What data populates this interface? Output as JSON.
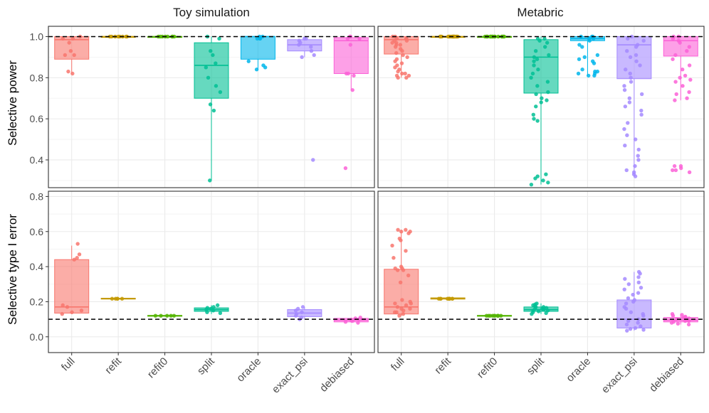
{
  "chart_data": {
    "type": "boxplot",
    "facet_columns": [
      "Toy simulation",
      "Metabric"
    ],
    "facet_rows": [
      "Selective power",
      "Selective type I error"
    ],
    "categories": [
      "full",
      "refit",
      "refit0",
      "split",
      "oracle",
      "exact_psi",
      "debiased"
    ],
    "colors": {
      "full": "#F8766D",
      "refit": "#C49A00",
      "refit0": "#53B400",
      "split": "#00C094",
      "oracle": "#00B6EB",
      "exact_psi": "#A58AFF",
      "debiased": "#FB61D7"
    },
    "panels": [
      {
        "row": "Selective power",
        "column": "Toy simulation",
        "ylim": [
          0.265,
          1.05
        ],
        "yticks": [
          0.4,
          0.6,
          0.8,
          1.0
        ],
        "ytick_labels": [
          "0.4",
          "0.6",
          "0.8",
          "1.0"
        ],
        "reference_line": 1.0,
        "boxes": [
          {
            "category": "full",
            "q1": 0.89,
            "median": 0.985,
            "q3": 1.0,
            "whisker_low": 0.82,
            "whisker_high": 1.0,
            "points": [
              1.0,
              0.99,
              0.99,
              0.97,
              0.93,
              0.91,
              0.91,
              0.83,
              0.82
            ]
          },
          {
            "category": "refit",
            "q1": 1.0,
            "median": 1.0,
            "q3": 1.0,
            "whisker_low": 1.0,
            "whisker_high": 1.0,
            "points": [
              1.0,
              1.0,
              1.0,
              1.0,
              1.0,
              1.0,
              1.0,
              1.0
            ]
          },
          {
            "category": "refit0",
            "q1": 1.0,
            "median": 1.0,
            "q3": 1.0,
            "whisker_low": 1.0,
            "whisker_high": 1.0,
            "points": [
              1.0,
              1.0,
              1.0,
              1.0,
              1.0,
              1.0,
              1.0,
              1.0
            ]
          },
          {
            "category": "split",
            "q1": 0.7,
            "median": 0.86,
            "q3": 0.97,
            "whisker_low": 0.3,
            "whisker_high": 1.0,
            "points": [
              1.0,
              0.99,
              0.93,
              0.91,
              0.87,
              0.85,
              0.8,
              0.76,
              0.73,
              0.67,
              0.64,
              0.3
            ]
          },
          {
            "category": "oracle",
            "q1": 0.89,
            "median": 1.0,
            "q3": 1.0,
            "whisker_low": 0.84,
            "whisker_high": 1.0,
            "points": [
              1.0,
              1.0,
              0.99,
              0.99,
              0.99,
              0.88,
              0.86,
              0.85,
              0.84
            ]
          },
          {
            "category": "exact_psi",
            "q1": 0.93,
            "median": 0.96,
            "q3": 0.985,
            "whisker_low": 0.9,
            "whisker_high": 1.0,
            "points": [
              0.99,
              0.99,
              0.98,
              0.97,
              0.96,
              0.95,
              0.93,
              0.91,
              0.9,
              0.4
            ]
          },
          {
            "category": "debiased",
            "q1": 0.82,
            "median": 0.98,
            "q3": 0.995,
            "whisker_low": 0.74,
            "whisker_high": 1.0,
            "points": [
              1.0,
              1.0,
              0.99,
              0.99,
              0.96,
              0.82,
              0.82,
              0.81,
              0.74,
              0.36
            ]
          }
        ]
      },
      {
        "row": "Selective power",
        "column": "Metabric",
        "ylim": [
          0.265,
          1.05
        ],
        "yticks": [
          0.4,
          0.6,
          0.8,
          1.0
        ],
        "ytick_labels": [
          "0.4",
          "0.6",
          "0.8",
          "1.0"
        ],
        "reference_line": 1.0,
        "boxes": [
          {
            "category": "full",
            "q1": 0.915,
            "median": 0.985,
            "q3": 1.0,
            "whisker_low": 0.8,
            "whisker_high": 1.0,
            "points": [
              1.0,
              1.0,
              0.99,
              0.99,
              0.98,
              0.97,
              0.96,
              0.95,
              0.93,
              0.92,
              0.9,
              0.88,
              0.86,
              0.85,
              0.84,
              0.83,
              0.82,
              0.81,
              0.8,
              0.8,
              0.99,
              0.98,
              0.97,
              0.96,
              0.94,
              0.91,
              0.89,
              0.87,
              0.82,
              0.81
            ]
          },
          {
            "category": "refit",
            "q1": 1.0,
            "median": 1.0,
            "q3": 1.0,
            "whisker_low": 1.0,
            "whisker_high": 1.0,
            "points": [
              1.0,
              1.0,
              1.0,
              1.0,
              1.0,
              1.0,
              1.0,
              1.0,
              1.0,
              1.0,
              1.0,
              1.0,
              1.0,
              1.0,
              1.0,
              1.0,
              1.0,
              1.0
            ]
          },
          {
            "category": "refit0",
            "q1": 1.0,
            "median": 1.0,
            "q3": 1.0,
            "whisker_low": 1.0,
            "whisker_high": 1.0,
            "points": [
              1.0,
              1.0,
              1.0,
              1.0,
              1.0,
              1.0,
              1.0,
              1.0,
              1.0,
              1.0,
              1.0,
              1.0,
              1.0,
              1.0,
              1.0,
              1.0,
              1.0,
              1.0
            ]
          },
          {
            "category": "split",
            "q1": 0.725,
            "median": 0.9,
            "q3": 0.985,
            "whisker_low": 0.28,
            "whisker_high": 1.0,
            "points": [
              0.99,
              0.99,
              0.98,
              0.97,
              0.95,
              0.93,
              0.91,
              0.9,
              0.89,
              0.88,
              0.86,
              0.84,
              0.82,
              0.8,
              0.78,
              0.76,
              0.73,
              0.72,
              0.7,
              0.69,
              0.68,
              0.66,
              0.62,
              0.6,
              0.59,
              0.33,
              0.32,
              0.31,
              0.3,
              0.29,
              0.28
            ]
          },
          {
            "category": "oracle",
            "q1": 0.98,
            "median": 0.99,
            "q3": 1.0,
            "whisker_low": 0.81,
            "whisker_high": 1.0,
            "points": [
              1.0,
              1.0,
              1.0,
              0.99,
              0.99,
              0.98,
              0.96,
              0.95,
              0.91,
              0.9,
              0.89,
              0.88,
              0.87,
              0.84,
              0.83,
              0.83,
              0.82,
              0.82,
              0.81,
              0.81
            ]
          },
          {
            "category": "exact_psi",
            "q1": 0.795,
            "median": 0.96,
            "q3": 1.0,
            "whisker_low": 0.32,
            "whisker_high": 1.0,
            "points": [
              1.0,
              0.99,
              0.98,
              0.96,
              0.95,
              0.93,
              0.91,
              0.9,
              0.88,
              0.86,
              0.84,
              0.82,
              0.8,
              0.78,
              0.76,
              0.74,
              0.72,
              0.7,
              0.68,
              0.66,
              0.64,
              0.62,
              0.58,
              0.55,
              0.52,
              0.5,
              0.47,
              0.45,
              0.42,
              0.4,
              0.37,
              0.35,
              0.34,
              0.33,
              0.32
            ]
          },
          {
            "category": "debiased",
            "q1": 0.905,
            "median": 0.98,
            "q3": 1.0,
            "whisker_low": 0.69,
            "whisker_high": 1.0,
            "points": [
              1.0,
              1.0,
              0.99,
              0.98,
              0.97,
              0.95,
              0.93,
              0.91,
              0.89,
              0.86,
              0.84,
              0.81,
              0.8,
              0.79,
              0.78,
              0.76,
              0.73,
              0.72,
              0.7,
              0.69,
              0.37,
              0.37,
              0.36,
              0.35,
              0.35,
              0.34
            ]
          }
        ]
      },
      {
        "row": "Selective type I error",
        "column": "Toy simulation",
        "ylim": [
          -0.09,
          0.83
        ],
        "yticks": [
          0.0,
          0.2,
          0.4,
          0.6,
          0.8
        ],
        "ytick_labels": [
          "0.0",
          "0.2",
          "0.4",
          "0.6",
          "0.8"
        ],
        "reference_line": 0.1,
        "boxes": [
          {
            "category": "full",
            "q1": 0.135,
            "median": 0.17,
            "q3": 0.44,
            "whisker_low": 0.13,
            "whisker_high": 0.52,
            "points": [
              0.53,
              0.47,
              0.45,
              0.44,
              0.18,
              0.17,
              0.15,
              0.14,
              0.13
            ]
          },
          {
            "category": "refit",
            "q1": 0.215,
            "median": 0.217,
            "q3": 0.22,
            "whisker_low": 0.215,
            "whisker_high": 0.22,
            "points": [
              0.217,
              0.217,
              0.217,
              0.217,
              0.217
            ]
          },
          {
            "category": "refit0",
            "q1": 0.118,
            "median": 0.12,
            "q3": 0.122,
            "whisker_low": 0.118,
            "whisker_high": 0.122,
            "points": [
              0.12,
              0.12,
              0.12,
              0.12,
              0.12
            ]
          },
          {
            "category": "split",
            "q1": 0.145,
            "median": 0.155,
            "q3": 0.165,
            "whisker_low": 0.13,
            "whisker_high": 0.18,
            "points": [
              0.18,
              0.17,
              0.165,
              0.16,
              0.155,
              0.15,
              0.14,
              0.135
            ]
          },
          {
            "category": "exact_psi",
            "q1": 0.115,
            "median": 0.135,
            "q3": 0.155,
            "whisker_low": 0.1,
            "whisker_high": 0.17,
            "points": [
              0.17,
              0.16,
              0.15,
              0.14,
              0.13,
              0.12,
              0.11,
              0.1
            ]
          },
          {
            "category": "debiased",
            "q1": 0.085,
            "median": 0.095,
            "q3": 0.105,
            "whisker_low": 0.08,
            "whisker_high": 0.11,
            "points": [
              0.11,
              0.105,
              0.1,
              0.095,
              0.09,
              0.085,
              0.08
            ]
          }
        ]
      },
      {
        "row": "Selective type I error",
        "column": "Metabric",
        "ylim": [
          -0.09,
          0.83
        ],
        "yticks": [
          0.0,
          0.2,
          0.4,
          0.6,
          0.8
        ],
        "ytick_labels": [
          "0.0",
          "0.2",
          "0.4",
          "0.6",
          "0.8"
        ],
        "reference_line": 0.1,
        "boxes": [
          {
            "category": "full",
            "q1": 0.13,
            "median": 0.17,
            "q3": 0.385,
            "whisker_low": 0.12,
            "whisker_high": 0.61,
            "points": [
              0.61,
              0.61,
              0.6,
              0.6,
              0.59,
              0.56,
              0.55,
              0.52,
              0.49,
              0.45,
              0.4,
              0.39,
              0.39,
              0.38,
              0.38,
              0.35,
              0.31,
              0.21,
              0.2,
              0.19,
              0.18,
              0.17,
              0.16,
              0.15,
              0.14,
              0.13,
              0.12,
              0.19,
              0.16,
              0.14
            ]
          },
          {
            "category": "refit",
            "q1": 0.215,
            "median": 0.217,
            "q3": 0.222,
            "whisker_low": 0.212,
            "whisker_high": 0.222,
            "points": [
              0.217,
              0.217,
              0.217,
              0.217,
              0.217,
              0.217,
              0.217,
              0.217,
              0.217,
              0.217
            ]
          },
          {
            "category": "refit0",
            "q1": 0.118,
            "median": 0.12,
            "q3": 0.122,
            "whisker_low": 0.116,
            "whisker_high": 0.124,
            "points": [
              0.12,
              0.12,
              0.12,
              0.12,
              0.12,
              0.12,
              0.12,
              0.12,
              0.12,
              0.12
            ]
          },
          {
            "category": "split",
            "q1": 0.145,
            "median": 0.155,
            "q3": 0.17,
            "whisker_low": 0.13,
            "whisker_high": 0.19,
            "points": [
              0.19,
              0.185,
              0.18,
              0.175,
              0.17,
              0.165,
              0.16,
              0.155,
              0.15,
              0.145,
              0.14,
              0.135,
              0.13,
              0.16,
              0.15,
              0.17
            ]
          },
          {
            "category": "exact_psi",
            "q1": 0.05,
            "median": 0.1,
            "q3": 0.21,
            "whisker_low": 0.035,
            "whisker_high": 0.37,
            "points": [
              0.37,
              0.36,
              0.34,
              0.33,
              0.31,
              0.3,
              0.28,
              0.27,
              0.25,
              0.24,
              0.22,
              0.21,
              0.2,
              0.19,
              0.17,
              0.16,
              0.14,
              0.13,
              0.12,
              0.1,
              0.09,
              0.08,
              0.07,
              0.06,
              0.05,
              0.045,
              0.04,
              0.035
            ]
          },
          {
            "category": "debiased",
            "q1": 0.085,
            "median": 0.095,
            "q3": 0.11,
            "whisker_low": 0.07,
            "whisker_high": 0.13,
            "points": [
              0.13,
              0.125,
              0.12,
              0.115,
              0.11,
              0.105,
              0.1,
              0.095,
              0.09,
              0.085,
              0.08,
              0.075,
              0.07,
              0.1,
              0.09,
              0.11
            ]
          }
        ]
      }
    ],
    "xlabel": "",
    "ylabel": ""
  }
}
